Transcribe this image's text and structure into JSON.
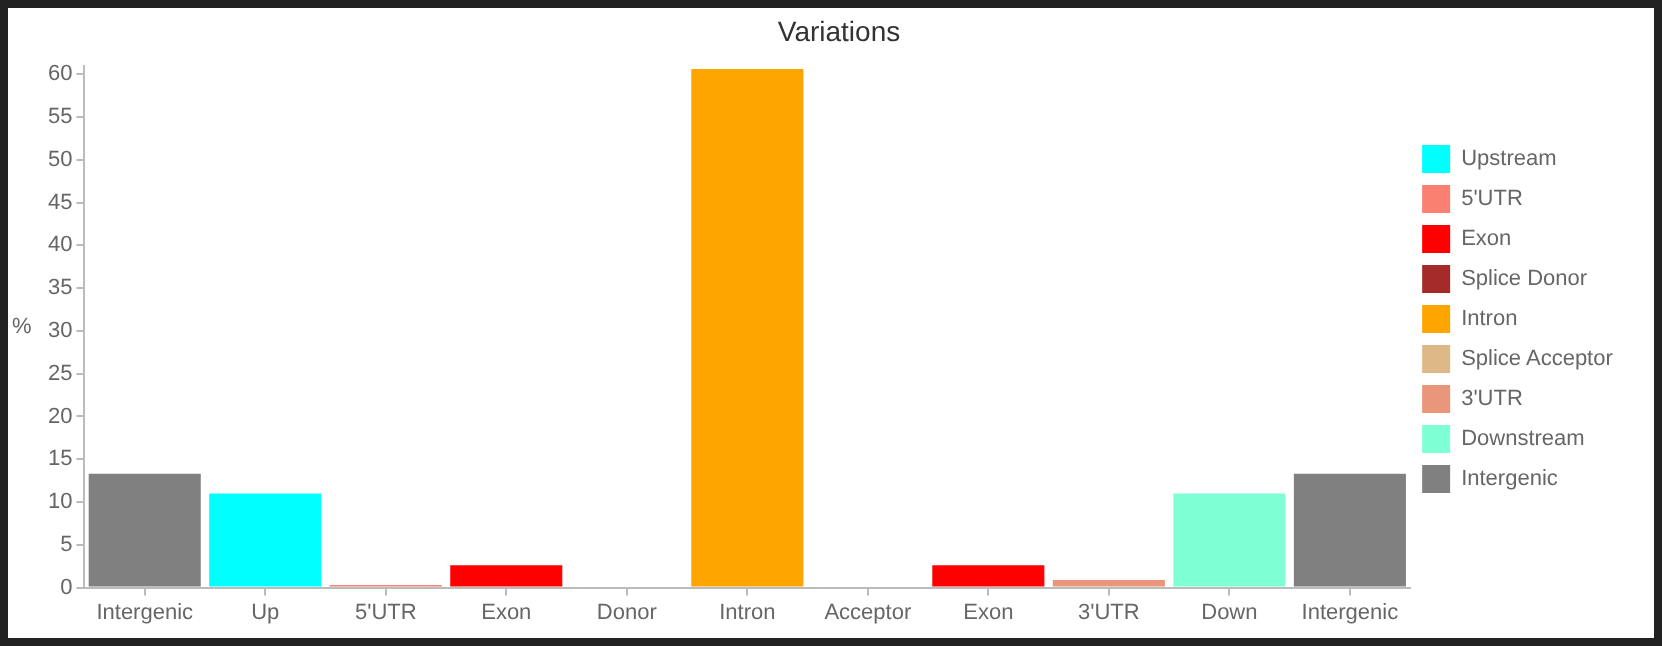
{
  "chart_data": {
    "type": "bar",
    "title": "Variations",
    "ylabel": "%",
    "stacked": true,
    "legend": "right",
    "grid": false,
    "categories": [
      "Intergenic",
      "Up",
      "5'UTR",
      "Exon",
      "Donor",
      "Intron",
      "Acceptor",
      "Exon",
      "3'UTR",
      "Down",
      "Intergenic"
    ],
    "ylim": [
      0,
      61
    ],
    "yticks": [
      0,
      5,
      10,
      15,
      20,
      25,
      30,
      35,
      40,
      45,
      50,
      55,
      60
    ],
    "series": [
      {
        "name": "Upstream",
        "color": "#00ffff",
        "values": [
          null,
          11.0,
          null,
          null,
          null,
          null,
          null,
          null,
          null,
          null,
          null
        ]
      },
      {
        "name": "5'UTR",
        "color": "#fa8072",
        "values": [
          null,
          null,
          0.3,
          null,
          null,
          null,
          null,
          null,
          null,
          null,
          null
        ]
      },
      {
        "name": "Exon",
        "color": "#ff0000",
        "values": [
          null,
          null,
          null,
          2.6,
          null,
          null,
          null,
          2.6,
          null,
          null,
          null
        ]
      },
      {
        "name": "Splice Donor",
        "color": "#a52a2a",
        "values": [
          null,
          null,
          null,
          null,
          0,
          null,
          null,
          null,
          null,
          null,
          null
        ]
      },
      {
        "name": "Intron",
        "color": "#ffa500",
        "values": [
          null,
          null,
          null,
          null,
          null,
          60.6,
          null,
          null,
          null,
          null,
          null
        ]
      },
      {
        "name": "Splice Acceptor",
        "color": "#deb887",
        "values": [
          null,
          null,
          null,
          null,
          null,
          null,
          0,
          null,
          null,
          null,
          null
        ]
      },
      {
        "name": "3'UTR",
        "color": "#e9967a",
        "values": [
          null,
          null,
          null,
          null,
          null,
          null,
          null,
          null,
          0.9,
          null,
          null
        ]
      },
      {
        "name": "Downstream",
        "color": "#7fffd4",
        "values": [
          null,
          null,
          null,
          null,
          null,
          null,
          null,
          null,
          null,
          11.0,
          null
        ]
      },
      {
        "name": "Intergenic",
        "color": "#808080",
        "values": [
          13.3,
          null,
          null,
          null,
          null,
          null,
          null,
          null,
          null,
          null,
          13.3
        ]
      }
    ]
  }
}
